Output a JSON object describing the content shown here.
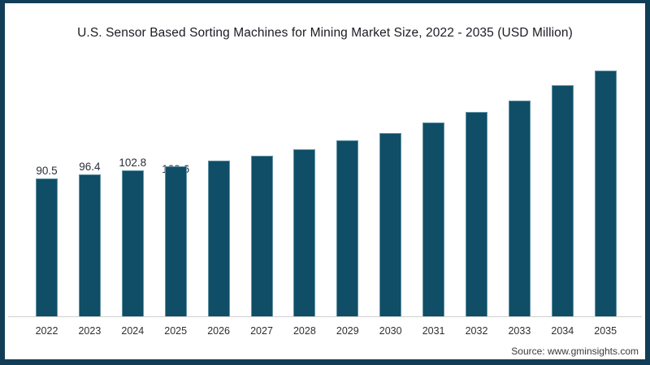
{
  "chart": {
    "title": "U.S. Sensor Based Sorting Machines for Mining Market Size, 2022 - 2035 (USD Million)",
    "source": "Source: www.gminsights.com",
    "colors": {
      "bar_fill": "#0f4e66",
      "bar_edge": "#aacdda",
      "frame_border": "#123d56",
      "axis_line": "#cfcfcf",
      "title_text": "#1b1b24",
      "tick_text": "#2f2f2f",
      "data_label_text": "#2a2f3a",
      "source_text": "#3a3a3a",
      "background": "#ffffff"
    }
  },
  "chart_data": {
    "type": "bar",
    "title": "U.S. Sensor Based Sorting Machines for Mining Market Size, 2022 - 2035 (USD Million)",
    "unit": "USD Million",
    "xlabel": "",
    "ylabel": "",
    "grid": false,
    "legend_position": "none",
    "value_axis_shown": false,
    "categories": [
      "2022",
      "2023",
      "2024",
      "2025",
      "2026",
      "2027",
      "2028",
      "2029",
      "2030",
      "2031",
      "2032",
      "2033",
      "2034",
      "2035"
    ],
    "values": [
      90.5,
      96.4,
      102.8,
      109.6,
      118.0,
      125.5,
      135.5,
      149.0,
      161.0,
      176.5,
      192.5,
      211.0,
      234.0,
      256.0
    ],
    "labels_visible_for": [
      "2022",
      "2023",
      "2024",
      "2025"
    ],
    "bars": [
      {
        "year": "2022",
        "value": 90.5,
        "label": "90.5",
        "label_position": "above"
      },
      {
        "year": "2023",
        "value": 96.4,
        "label": "96.4",
        "label_position": "above"
      },
      {
        "year": "2024",
        "value": 102.8,
        "label": "102.8",
        "label_position": "above"
      },
      {
        "year": "2025",
        "value": 109.6,
        "label": "109.6",
        "label_position": "behind-bar"
      },
      {
        "year": "2026",
        "value": 118.0,
        "label": "",
        "label_position": "none"
      },
      {
        "year": "2027",
        "value": 125.5,
        "label": "",
        "label_position": "none"
      },
      {
        "year": "2028",
        "value": 135.5,
        "label": "",
        "label_position": "none"
      },
      {
        "year": "2029",
        "value": 149.0,
        "label": "",
        "label_position": "none"
      },
      {
        "year": "2030",
        "value": 161.0,
        "label": "",
        "label_position": "none"
      },
      {
        "year": "2031",
        "value": 176.5,
        "label": "",
        "label_position": "none"
      },
      {
        "year": "2032",
        "value": 192.5,
        "label": "",
        "label_position": "none"
      },
      {
        "year": "2033",
        "value": 211.0,
        "label": "",
        "label_position": "none"
      },
      {
        "year": "2034",
        "value": 234.0,
        "label": "",
        "label_position": "none"
      },
      {
        "year": "2035",
        "value": 256.0,
        "label": "",
        "label_position": "none"
      }
    ]
  }
}
